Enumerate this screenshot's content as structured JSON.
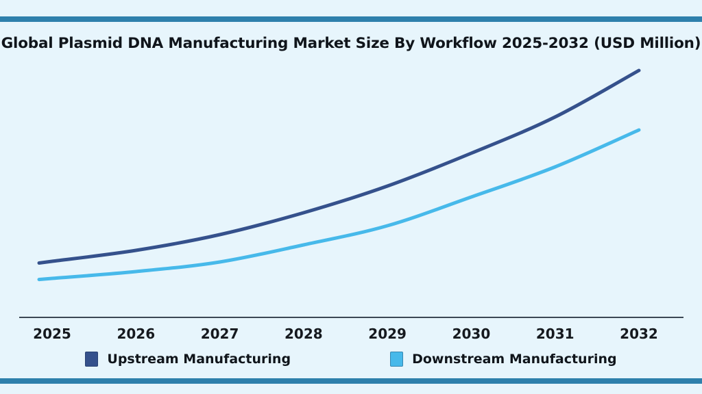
{
  "page": {
    "background": "#e7f5fc",
    "accent_bar_color": "#2e80ac",
    "axis_color": "#3b4754",
    "text_color": "#10151b"
  },
  "chart_data": {
    "type": "line",
    "title": "Global Plasmid DNA Manufacturing Market Size By Workflow 2025-2032 (USD Million)",
    "x": [
      "2025",
      "2026",
      "2027",
      "2028",
      "2029",
      "2030",
      "2031",
      "2032"
    ],
    "series": [
      {
        "name": "Upstream Manufacturing",
        "color": "#35518c",
        "values": [
          82,
          98,
          121,
          153,
          192,
          240,
          293,
          361
        ]
      },
      {
        "name": "Downstream Manufacturing",
        "color": "#47b9ea",
        "values": [
          57,
          67,
          81,
          106,
          134,
          176,
          220,
          274
        ]
      }
    ],
    "xlabel": "",
    "ylabel": "",
    "units": "USD Million",
    "y_axis_visible": false,
    "values_note": "Y-axis has no ticks or labels in source image; series values are estimated relative magnitudes read from curve heights",
    "grid": false,
    "legend_position": "bottom",
    "ylim": [
      0,
      420
    ]
  }
}
